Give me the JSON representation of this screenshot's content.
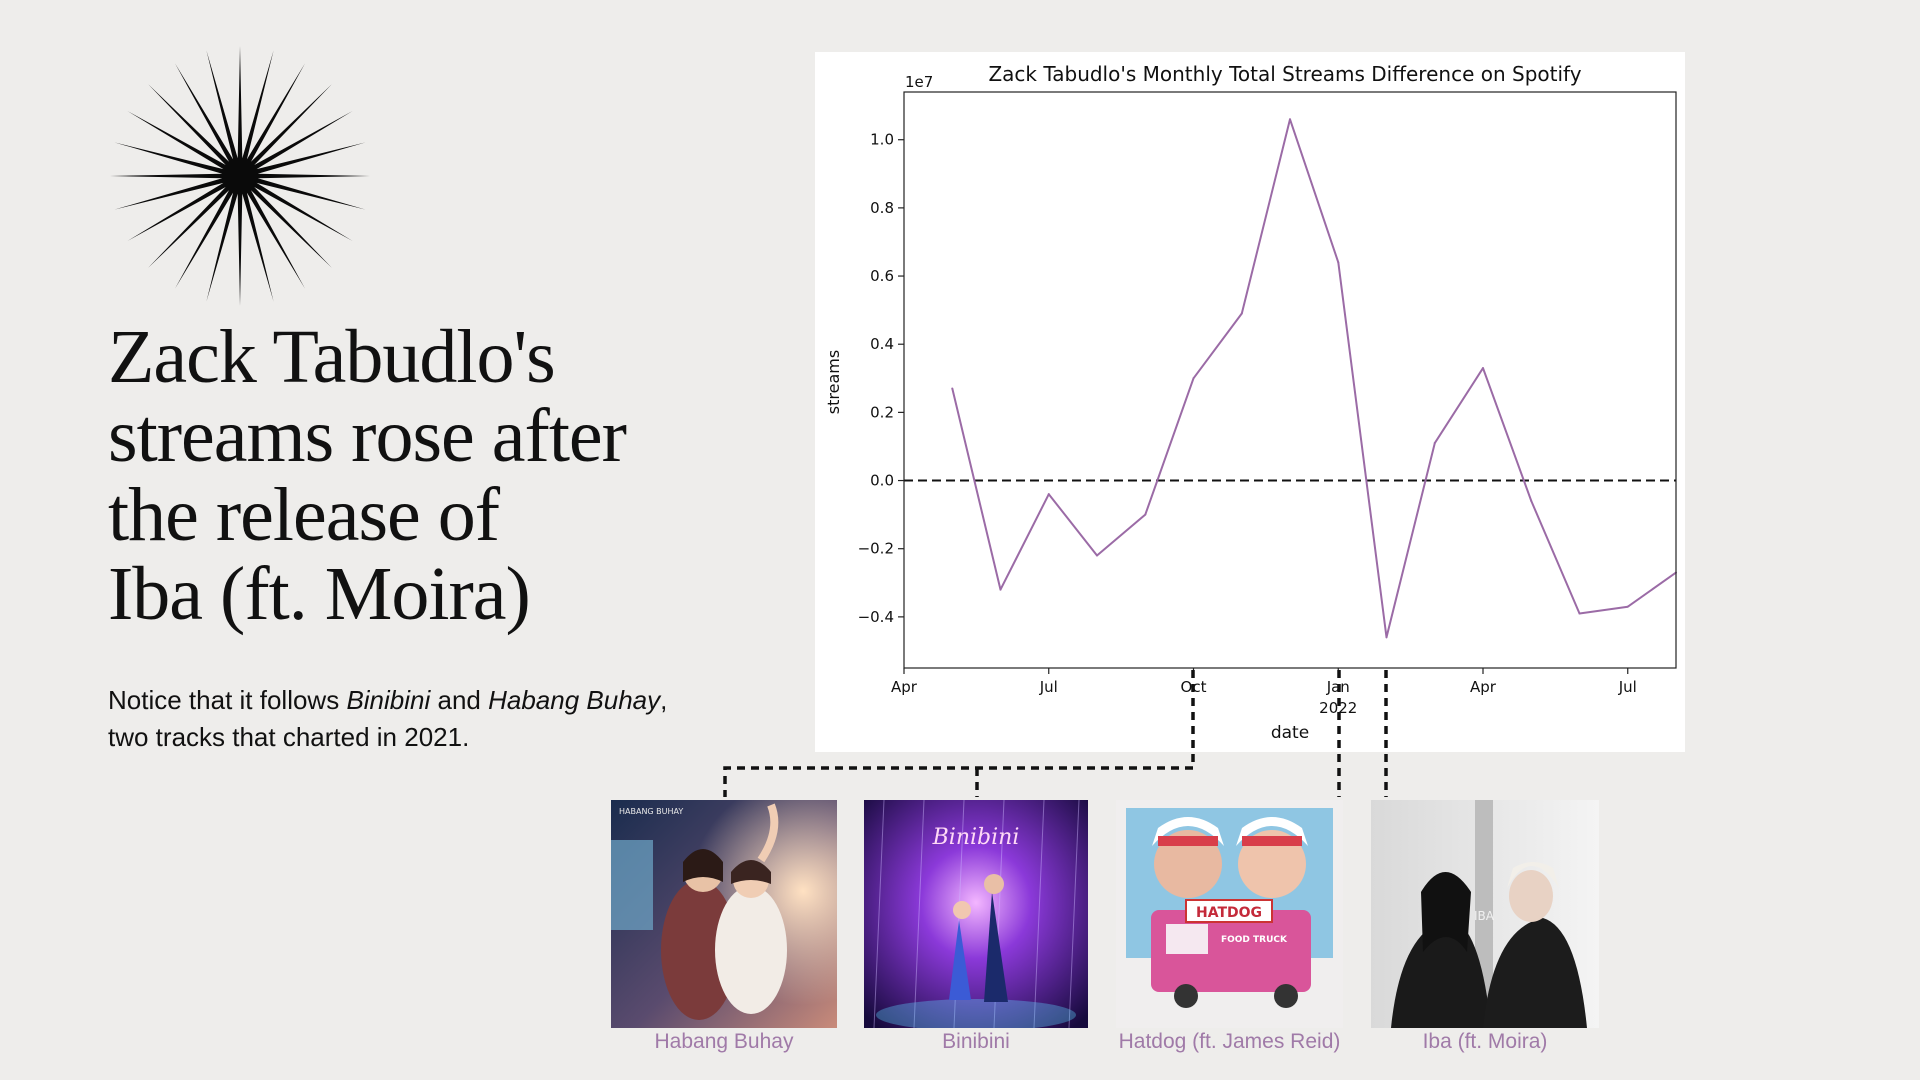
{
  "headline": {
    "lines": [
      "Zack Tabudlo's",
      "streams rose after",
      "the release of",
      "Iba (ft. Moira)"
    ]
  },
  "subtext": {
    "part1": "Notice that it follows ",
    "binibini": "Binibini",
    "and": " and ",
    "habang_buhay": "Habang Buhay",
    "part2": ", two tracks that charted in 2021."
  },
  "colors": {
    "background": "#eeedeb",
    "line": "#9b6ba6",
    "caption": "#a07aa8"
  },
  "chart_data": {
    "type": "line",
    "title": "Zack Tabudlo's Monthly Total Streams Difference on Spotify",
    "xlabel": "date",
    "ylabel": "streams",
    "offset_label": "1e7",
    "x": [
      "2021-05",
      "2021-06",
      "2021-07",
      "2021-08",
      "2021-09",
      "2021-10",
      "2021-11",
      "2021-12",
      "2022-01",
      "2022-02",
      "2022-03",
      "2022-04",
      "2022-05",
      "2022-06",
      "2022-07",
      "2022-08"
    ],
    "series": [
      {
        "values": [
          0.27,
          -0.32,
          -0.04,
          -0.22,
          -0.1,
          0.3,
          0.49,
          1.06,
          0.64,
          -0.46,
          0.11,
          0.33,
          -0.06,
          -0.39,
          -0.37,
          -0.27
        ]
      }
    ],
    "xlim": [
      "2021-04",
      "2022-08"
    ],
    "ylim": [
      -0.55,
      1.14
    ],
    "yticks": [
      -0.4,
      -0.2,
      0.0,
      0.2,
      0.4,
      0.6,
      0.8,
      1.0
    ],
    "ytick_labels": [
      "−0.4",
      "−0.2",
      "0.0",
      "0.2",
      "0.4",
      "0.6",
      "0.8",
      "1.0"
    ],
    "xticks": [
      {
        "date": "2021-04",
        "label": "Apr"
      },
      {
        "date": "2021-07",
        "label": "Jul"
      },
      {
        "date": "2021-10",
        "label": "Oct"
      },
      {
        "date": "2022-01",
        "label": "Jan",
        "sublabel": "2022"
      },
      {
        "date": "2022-04",
        "label": "Apr"
      },
      {
        "date": "2022-07",
        "label": "Jul"
      }
    ],
    "reference_line": 0,
    "grid": false
  },
  "albums": [
    {
      "title": "Habang Buhay",
      "cover_text": "HABANG BUHAY"
    },
    {
      "title": "Binibini",
      "cover_text": "Binibini"
    },
    {
      "title": "Hatdog (ft. James Reid)",
      "cover_text": "HATDOG",
      "cover_text_2": "FOOD TRUCK"
    },
    {
      "title": "Iba (ft. Moira)",
      "cover_text": "IBA"
    }
  ]
}
